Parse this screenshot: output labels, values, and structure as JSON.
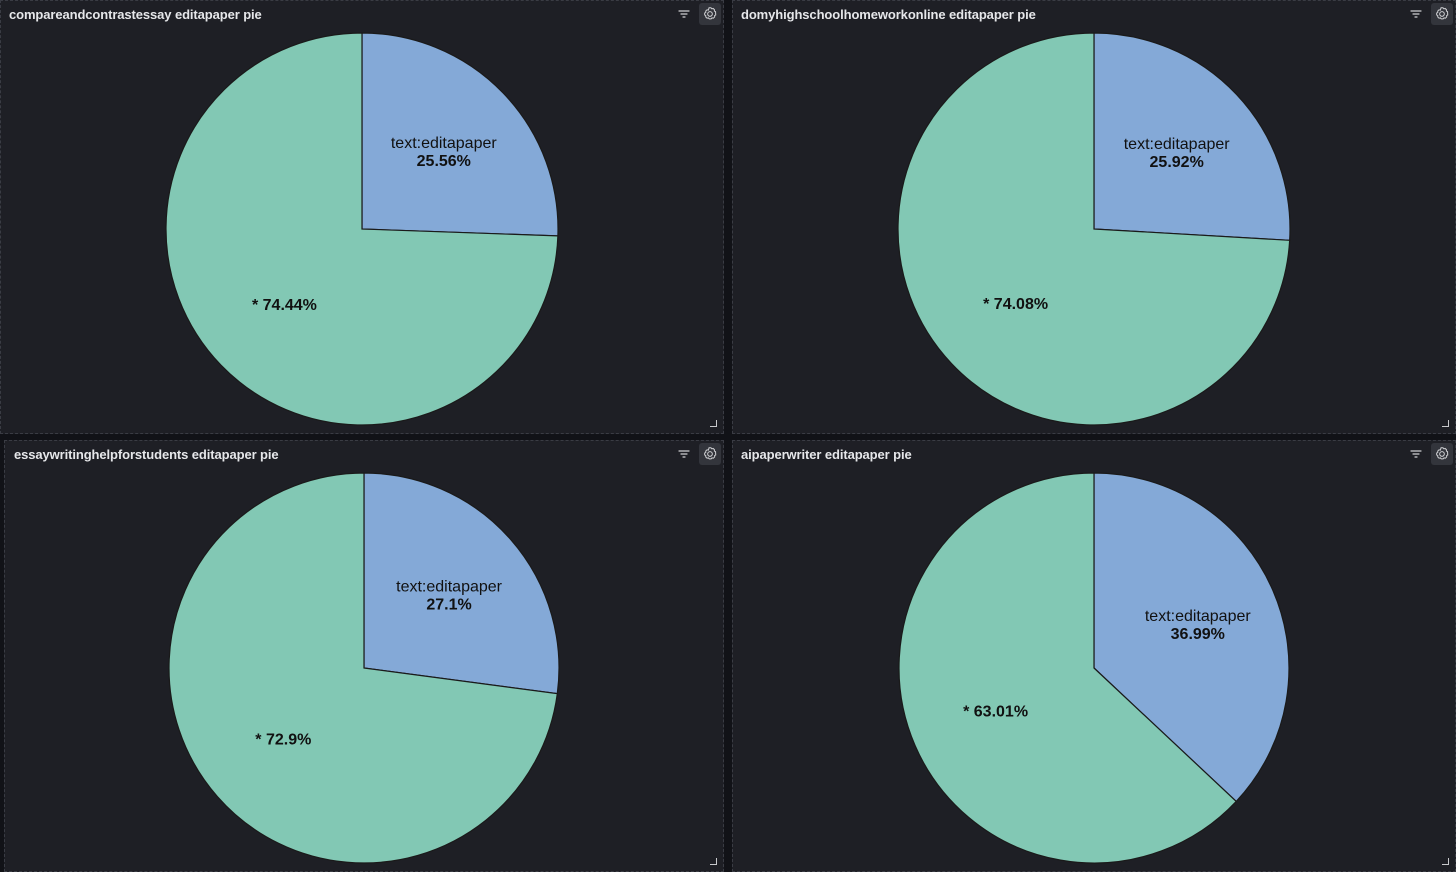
{
  "panels": [
    {
      "title": "compareandcontrastessay editapaper pie",
      "chart_data": {
        "type": "pie",
        "slices": [
          {
            "label": "text:editapaper",
            "percent_label": "25.56%",
            "value": 25.56,
            "color": "#84a9d7"
          },
          {
            "label": "*",
            "percent_label": "74.44%",
            "value": 74.44,
            "color": "#82c8b4"
          }
        ]
      }
    },
    {
      "title": "domyhighschoolhomeworkonline editapaper pie",
      "chart_data": {
        "type": "pie",
        "slices": [
          {
            "label": "text:editapaper",
            "percent_label": "25.92%",
            "value": 25.92,
            "color": "#84a9d7"
          },
          {
            "label": "*",
            "percent_label": "74.08%",
            "value": 74.08,
            "color": "#82c8b4"
          }
        ]
      }
    },
    {
      "title": "essaywritinghelpforstudents editapaper pie",
      "chart_data": {
        "type": "pie",
        "slices": [
          {
            "label": "text:editapaper",
            "percent_label": "27.1%",
            "value": 27.1,
            "color": "#84a9d7"
          },
          {
            "label": "*",
            "percent_label": "72.9%",
            "value": 72.9,
            "color": "#82c8b4"
          }
        ]
      }
    },
    {
      "title": "aipaperwriter editapaper pie",
      "chart_data": {
        "type": "pie",
        "slices": [
          {
            "label": "text:editapaper",
            "percent_label": "36.99%",
            "value": 36.99,
            "color": "#84a9d7"
          },
          {
            "label": "*",
            "percent_label": "63.01%",
            "value": 63.01,
            "color": "#82c8b4"
          }
        ]
      }
    }
  ],
  "icons": {
    "filter": "filter-icon",
    "settings": "gear-icon",
    "resize": "resize-handle-icon"
  }
}
